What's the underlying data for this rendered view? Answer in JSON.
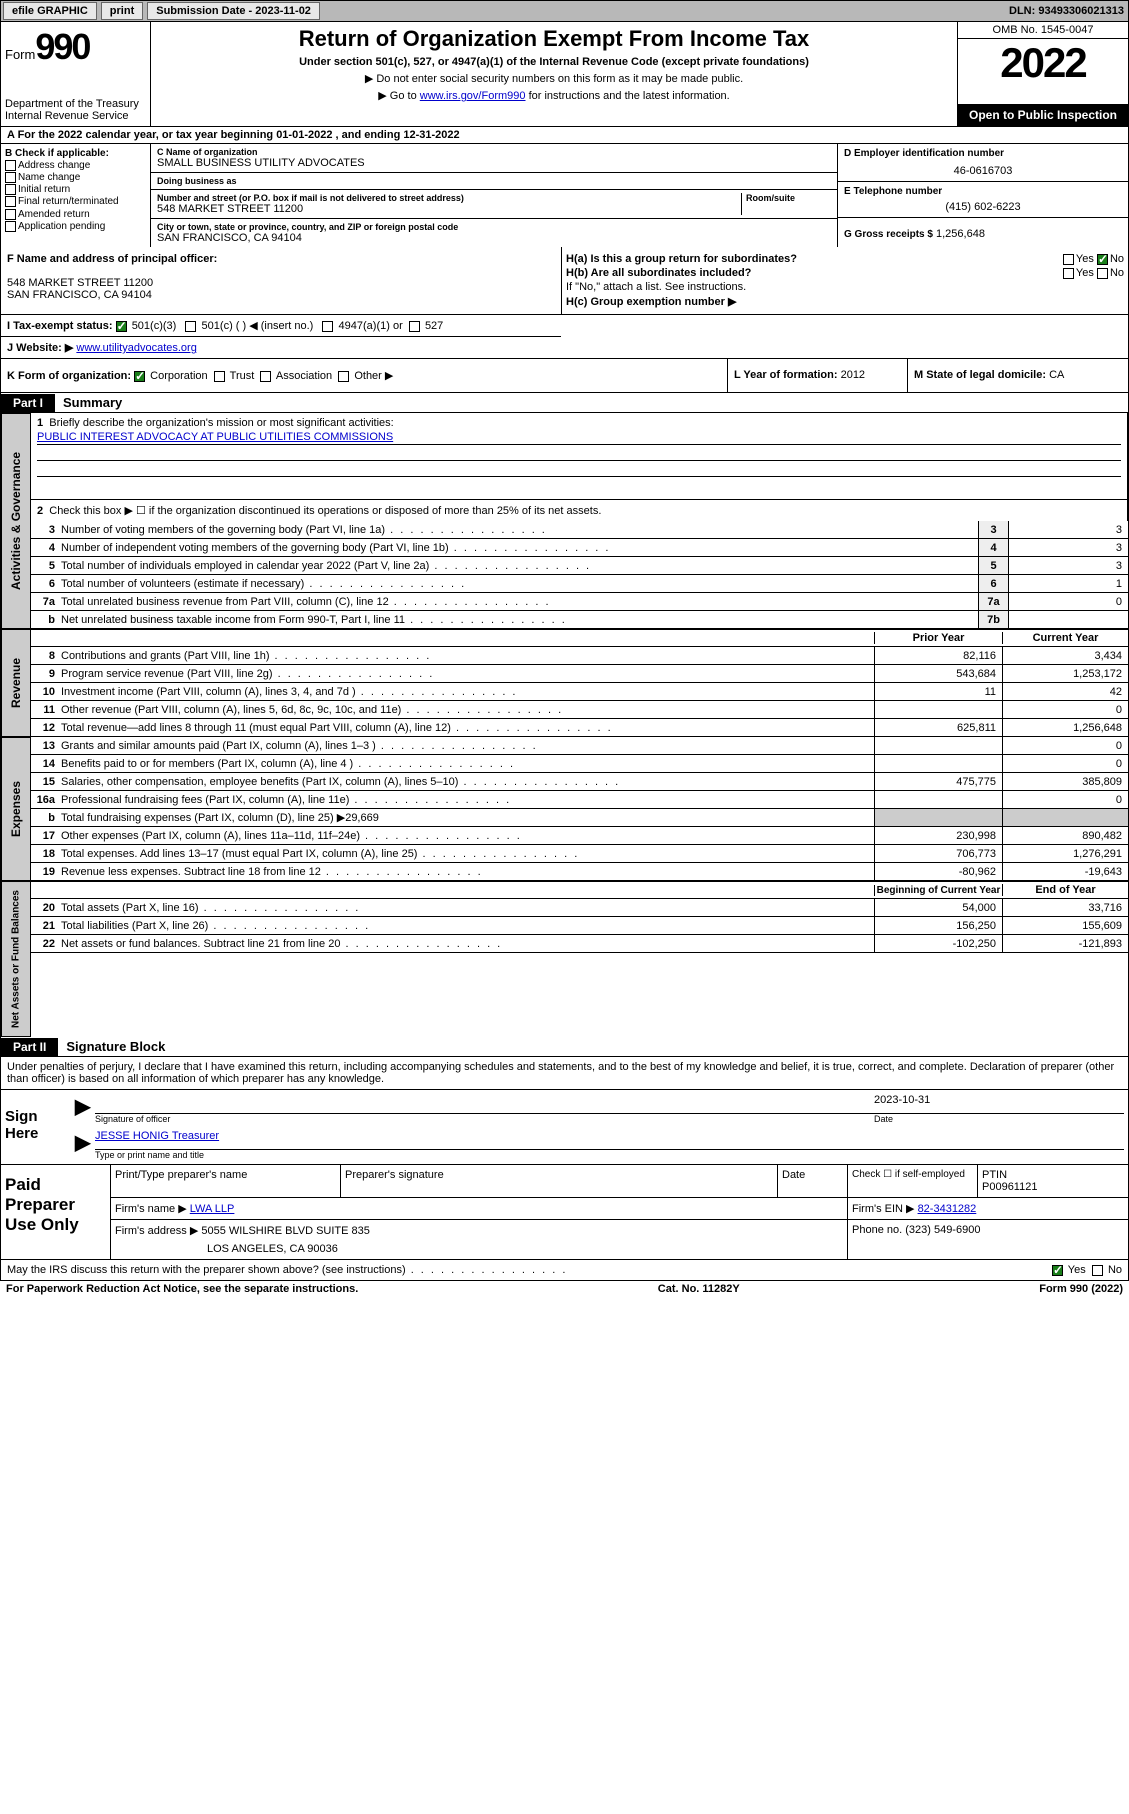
{
  "topbar": {
    "efile": "efile GRAPHIC",
    "print": "print",
    "subdate_label": "Submission Date - 2023-11-02",
    "dln": "DLN: 93493306021313"
  },
  "header": {
    "form_label": "Form",
    "form_no": "990",
    "dept": "Department of the Treasury\nInternal Revenue Service",
    "title": "Return of Organization Exempt From Income Tax",
    "sub": "Under section 501(c), 527, or 4947(a)(1) of the Internal Revenue Code (except private foundations)",
    "arrow1": "▶ Do not enter social security numbers on this form as it may be made public.",
    "arrow2_pre": "▶ Go to ",
    "arrow2_link": "www.irs.gov/Form990",
    "arrow2_post": " for instructions and the latest information.",
    "omb": "OMB No. 1545-0047",
    "year": "2022",
    "open_pub": "Open to Public Inspection"
  },
  "rowA": {
    "text": "A For the 2022 calendar year, or tax year beginning 01-01-2022    , and ending 12-31-2022"
  },
  "colB": {
    "title": "B Check if applicable:",
    "items": [
      "Address change",
      "Name change",
      "Initial return",
      "Final return/terminated",
      "Amended return",
      "Application pending"
    ]
  },
  "colC": {
    "name_lbl": "C Name of organization",
    "name": "SMALL BUSINESS UTILITY ADVOCATES",
    "dba_lbl": "Doing business as",
    "dba": "",
    "addr_lbl": "Number and street (or P.O. box if mail is not delivered to street address)",
    "room_lbl": "Room/suite",
    "addr": "548 MARKET STREET 11200",
    "city_lbl": "City or town, state or province, country, and ZIP or foreign postal code",
    "city": "SAN FRANCISCO, CA  94104"
  },
  "colD": {
    "ein_lbl": "D Employer identification number",
    "ein": "46-0616703",
    "phone_lbl": "E Telephone number",
    "phone": "(415) 602-6223",
    "gross_lbl": "G Gross receipts $",
    "gross": "1,256,648"
  },
  "rowF": {
    "lbl": "F Name and address of principal officer:",
    "line1": "548 MARKET STREET 11200",
    "line2": "SAN FRANCISCO, CA  94104"
  },
  "rowH": {
    "ha": "H(a)  Is this a group return for subordinates?",
    "ha_yes": "Yes",
    "ha_no": "No",
    "hb": "H(b)  Are all subordinates included?",
    "hb_yes": "Yes",
    "hb_no": "No",
    "hb_note": "If \"No,\" attach a list. See instructions.",
    "hc": "H(c)  Group exemption number ▶"
  },
  "rowI": {
    "lbl": "I   Tax-exempt status:",
    "c3": "501(c)(3)",
    "c": "501(c) (   ) ◀ (insert no.)",
    "a1": "4947(a)(1) or",
    "s527": "527"
  },
  "rowJ": {
    "lbl": "J   Website: ▶",
    "val": "www.utilityadvocates.org"
  },
  "rowK": {
    "lbl": "K Form of organization:",
    "corp": "Corporation",
    "trust": "Trust",
    "assoc": "Association",
    "other": "Other ▶"
  },
  "rowL": {
    "lbl": "L Year of formation:",
    "val": "2012"
  },
  "rowM": {
    "lbl": "M State of legal domicile:",
    "val": "CA"
  },
  "part1": {
    "hdr": "Part I",
    "title": "Summary",
    "l1": "Briefly describe the organization's mission or most significant activities:",
    "l1_text": "PUBLIC INTEREST ADVOCACY AT PUBLIC UTILITIES COMMISSIONS",
    "l2": "Check this box ▶ ☐  if the organization discontinued its operations or disposed of more than 25% of its net assets.",
    "lines_single": [
      {
        "n": "3",
        "t": "Number of voting members of the governing body (Part VI, line 1a)",
        "box": "3",
        "v": "3"
      },
      {
        "n": "4",
        "t": "Number of independent voting members of the governing body (Part VI, line 1b)",
        "box": "4",
        "v": "3"
      },
      {
        "n": "5",
        "t": "Total number of individuals employed in calendar year 2022 (Part V, line 2a)",
        "box": "5",
        "v": "3"
      },
      {
        "n": "6",
        "t": "Total number of volunteers (estimate if necessary)",
        "box": "6",
        "v": "1"
      },
      {
        "n": "7a",
        "t": "Total unrelated business revenue from Part VIII, column (C), line 12",
        "box": "7a",
        "v": "0"
      },
      {
        "n": "b",
        "t": "Net unrelated business taxable income from Form 990-T, Part I, line 11",
        "box": "7b",
        "v": ""
      }
    ],
    "col_hdr_prior": "Prior Year",
    "col_hdr_curr": "Current Year",
    "rev_lines": [
      {
        "n": "8",
        "t": "Contributions and grants (Part VIII, line 1h)",
        "p": "82,116",
        "c": "3,434"
      },
      {
        "n": "9",
        "t": "Program service revenue (Part VIII, line 2g)",
        "p": "543,684",
        "c": "1,253,172"
      },
      {
        "n": "10",
        "t": "Investment income (Part VIII, column (A), lines 3, 4, and 7d )",
        "p": "11",
        "c": "42"
      },
      {
        "n": "11",
        "t": "Other revenue (Part VIII, column (A), lines 5, 6d, 8c, 9c, 10c, and 11e)",
        "p": "",
        "c": "0"
      },
      {
        "n": "12",
        "t": "Total revenue—add lines 8 through 11 (must equal Part VIII, column (A), line 12)",
        "p": "625,811",
        "c": "1,256,648"
      }
    ],
    "exp_lines": [
      {
        "n": "13",
        "t": "Grants and similar amounts paid (Part IX, column (A), lines 1–3 )",
        "p": "",
        "c": "0"
      },
      {
        "n": "14",
        "t": "Benefits paid to or for members (Part IX, column (A), line 4 )",
        "p": "",
        "c": "0"
      },
      {
        "n": "15",
        "t": "Salaries, other compensation, employee benefits (Part IX, column (A), lines 5–10)",
        "p": "475,775",
        "c": "385,809"
      },
      {
        "n": "16a",
        "t": "Professional fundraising fees (Part IX, column (A), line 11e)",
        "p": "",
        "c": "0"
      },
      {
        "n": "b",
        "t": "Total fundraising expenses (Part IX, column (D), line 25) ▶29,669",
        "p": "grey",
        "c": "grey"
      },
      {
        "n": "17",
        "t": "Other expenses (Part IX, column (A), lines 11a–11d, 11f–24e)",
        "p": "230,998",
        "c": "890,482"
      },
      {
        "n": "18",
        "t": "Total expenses. Add lines 13–17 (must equal Part IX, column (A), line 25)",
        "p": "706,773",
        "c": "1,276,291"
      },
      {
        "n": "19",
        "t": "Revenue less expenses. Subtract line 18 from line 12",
        "p": "-80,962",
        "c": "-19,643"
      }
    ],
    "na_hdr_begin": "Beginning of Current Year",
    "na_hdr_end": "End of Year",
    "na_lines": [
      {
        "n": "20",
        "t": "Total assets (Part X, line 16)",
        "p": "54,000",
        "c": "33,716"
      },
      {
        "n": "21",
        "t": "Total liabilities (Part X, line 26)",
        "p": "156,250",
        "c": "155,609"
      },
      {
        "n": "22",
        "t": "Net assets or fund balances. Subtract line 21 from line 20",
        "p": "-102,250",
        "c": "-121,893"
      }
    ]
  },
  "vtabs": {
    "gov": "Activities & Governance",
    "rev": "Revenue",
    "exp": "Expenses",
    "na": "Net Assets or Fund Balances"
  },
  "part2": {
    "hdr": "Part II",
    "title": "Signature Block",
    "intro": "Under penalties of perjury, I declare that I have examined this return, including accompanying schedules and statements, and to the best of my knowledge and belief, it is true, correct, and complete. Declaration of preparer (other than officer) is based on all information of which preparer has any knowledge.",
    "sign_here": "Sign Here",
    "sig_of_officer": "Signature of officer",
    "date_lbl": "Date",
    "sig_date": "2023-10-31",
    "name_title": "JESSE HONIG Treasurer",
    "name_title_lbl": "Type or print name and title",
    "paid": "Paid Preparer Use Only",
    "prep_name_lbl": "Print/Type preparer's name",
    "prep_sig_lbl": "Preparer's signature",
    "check_if": "Check ☐ if self-employed",
    "ptin_lbl": "PTIN",
    "ptin": "P00961121",
    "firm_name_lbl": "Firm's name    ▶",
    "firm_name": "LWA LLP",
    "firm_ein_lbl": "Firm's EIN ▶",
    "firm_ein": "82-3431282",
    "firm_addr_lbl": "Firm's address ▶",
    "firm_addr1": "5055 WILSHIRE BLVD SUITE 835",
    "firm_addr2": "LOS ANGELES, CA  90036",
    "phone_lbl": "Phone no.",
    "phone": "(323) 549-6900",
    "discuss": "May the IRS discuss this return with the preparer shown above? (see instructions)",
    "yes": "Yes",
    "no": "No"
  },
  "footer": {
    "pra": "For Paperwork Reduction Act Notice, see the separate instructions.",
    "cat": "Cat. No. 11282Y",
    "form": "Form 990 (2022)"
  }
}
